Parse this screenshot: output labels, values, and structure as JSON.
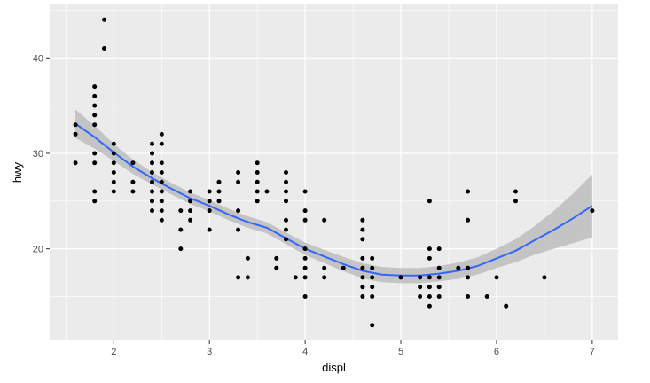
{
  "chart_data": {
    "type": "scatter",
    "title": "",
    "xlabel": "displ",
    "ylabel": "hwy",
    "xlim": [
      1.33,
      7.27
    ],
    "ylim": [
      10.4,
      45.6
    ],
    "x_ticks": [
      2,
      3,
      4,
      5,
      6,
      7
    ],
    "y_ticks": [
      20,
      30,
      40
    ],
    "grid": true,
    "legend": "none",
    "colors": {
      "panel": "#ebebeb",
      "grid": "#ffffff",
      "point": "#000000",
      "smooth_line": "#3366ff",
      "ribbon": "#bdbdbd",
      "axis_text": "#4d4d4d",
      "axis_title": "#000000"
    },
    "points": [
      [
        1.6,
        33
      ],
      [
        1.6,
        32
      ],
      [
        1.6,
        29
      ],
      [
        1.8,
        37
      ],
      [
        1.8,
        36
      ],
      [
        1.8,
        35
      ],
      [
        1.8,
        34
      ],
      [
        1.8,
        33
      ],
      [
        1.8,
        30
      ],
      [
        1.8,
        29
      ],
      [
        1.8,
        26
      ],
      [
        1.8,
        25
      ],
      [
        1.9,
        44
      ],
      [
        1.9,
        41
      ],
      [
        2.0,
        31
      ],
      [
        2.0,
        30
      ],
      [
        2.0,
        29
      ],
      [
        2.0,
        28
      ],
      [
        2.0,
        27
      ],
      [
        2.0,
        26
      ],
      [
        2.2,
        29
      ],
      [
        2.2,
        27
      ],
      [
        2.2,
        26
      ],
      [
        2.4,
        31
      ],
      [
        2.4,
        30
      ],
      [
        2.4,
        29
      ],
      [
        2.4,
        28
      ],
      [
        2.4,
        27
      ],
      [
        2.4,
        26
      ],
      [
        2.4,
        25
      ],
      [
        2.4,
        24
      ],
      [
        2.5,
        32
      ],
      [
        2.5,
        31
      ],
      [
        2.5,
        29
      ],
      [
        2.5,
        28
      ],
      [
        2.5,
        27
      ],
      [
        2.5,
        26
      ],
      [
        2.5,
        25
      ],
      [
        2.5,
        24
      ],
      [
        2.5,
        23
      ],
      [
        2.7,
        24
      ],
      [
        2.7,
        22
      ],
      [
        2.7,
        20
      ],
      [
        2.8,
        26
      ],
      [
        2.8,
        25
      ],
      [
        2.8,
        24
      ],
      [
        2.8,
        23
      ],
      [
        3.0,
        26
      ],
      [
        3.0,
        25
      ],
      [
        3.0,
        24
      ],
      [
        3.0,
        22
      ],
      [
        3.1,
        27
      ],
      [
        3.1,
        26
      ],
      [
        3.1,
        25
      ],
      [
        3.3,
        28
      ],
      [
        3.3,
        27
      ],
      [
        3.3,
        24
      ],
      [
        3.3,
        22
      ],
      [
        3.3,
        17
      ],
      [
        3.4,
        19
      ],
      [
        3.4,
        17
      ],
      [
        3.5,
        29
      ],
      [
        3.5,
        28
      ],
      [
        3.5,
        27
      ],
      [
        3.5,
        26
      ],
      [
        3.5,
        25
      ],
      [
        3.6,
        26
      ],
      [
        3.7,
        19
      ],
      [
        3.7,
        18
      ],
      [
        3.8,
        28
      ],
      [
        3.8,
        27
      ],
      [
        3.8,
        26
      ],
      [
        3.8,
        25
      ],
      [
        3.8,
        23
      ],
      [
        3.8,
        22
      ],
      [
        3.8,
        21
      ],
      [
        3.9,
        17
      ],
      [
        4.0,
        26
      ],
      [
        4.0,
        24
      ],
      [
        4.0,
        23
      ],
      [
        4.0,
        20
      ],
      [
        4.0,
        19
      ],
      [
        4.0,
        18
      ],
      [
        4.0,
        17
      ],
      [
        4.0,
        15
      ],
      [
        4.2,
        23
      ],
      [
        4.2,
        18
      ],
      [
        4.2,
        17
      ],
      [
        4.4,
        18
      ],
      [
        4.6,
        23
      ],
      [
        4.6,
        22
      ],
      [
        4.6,
        21
      ],
      [
        4.6,
        19
      ],
      [
        4.6,
        18
      ],
      [
        4.6,
        17
      ],
      [
        4.6,
        16
      ],
      [
        4.6,
        15
      ],
      [
        4.7,
        19
      ],
      [
        4.7,
        18
      ],
      [
        4.7,
        17
      ],
      [
        4.7,
        16
      ],
      [
        4.7,
        15
      ],
      [
        4.7,
        12
      ],
      [
        5.0,
        17
      ],
      [
        5.2,
        17
      ],
      [
        5.2,
        16
      ],
      [
        5.2,
        15
      ],
      [
        5.3,
        25
      ],
      [
        5.3,
        20
      ],
      [
        5.3,
        19
      ],
      [
        5.3,
        17
      ],
      [
        5.3,
        16
      ],
      [
        5.3,
        15
      ],
      [
        5.3,
        14
      ],
      [
        5.4,
        20
      ],
      [
        5.4,
        18
      ],
      [
        5.4,
        17
      ],
      [
        5.4,
        16
      ],
      [
        5.4,
        15
      ],
      [
        5.6,
        18
      ],
      [
        5.7,
        26
      ],
      [
        5.7,
        23
      ],
      [
        5.7,
        18
      ],
      [
        5.7,
        17
      ],
      [
        5.7,
        15
      ],
      [
        5.9,
        15
      ],
      [
        6.0,
        17
      ],
      [
        6.1,
        14
      ],
      [
        6.2,
        26
      ],
      [
        6.2,
        25
      ],
      [
        6.5,
        17
      ],
      [
        7.0,
        24
      ]
    ],
    "smooth": [
      [
        1.6,
        33.1
      ],
      [
        1.8,
        31.7
      ],
      [
        2.0,
        30.1
      ],
      [
        2.2,
        28.6
      ],
      [
        2.4,
        27.4
      ],
      [
        2.6,
        26.3
      ],
      [
        2.8,
        25.3
      ],
      [
        3.0,
        24.5
      ],
      [
        3.2,
        23.6
      ],
      [
        3.4,
        22.8
      ],
      [
        3.6,
        22.2
      ],
      [
        3.8,
        21.1
      ],
      [
        4.0,
        20.0
      ],
      [
        4.2,
        19.2
      ],
      [
        4.4,
        18.4
      ],
      [
        4.6,
        17.7
      ],
      [
        4.8,
        17.3
      ],
      [
        5.0,
        17.2
      ],
      [
        5.2,
        17.2
      ],
      [
        5.4,
        17.4
      ],
      [
        5.6,
        17.7
      ],
      [
        5.8,
        18.2
      ],
      [
        6.0,
        19.0
      ],
      [
        6.2,
        19.8
      ],
      [
        6.4,
        20.9
      ],
      [
        6.6,
        22.0
      ],
      [
        6.8,
        23.2
      ],
      [
        7.0,
        24.5
      ]
    ],
    "ribbon_halfwidth": [
      1.5,
      1.2,
      0.9,
      0.75,
      0.65,
      0.6,
      0.6,
      0.6,
      0.6,
      0.6,
      0.6,
      0.6,
      0.65,
      0.7,
      0.75,
      0.8,
      0.8,
      0.8,
      0.8,
      0.8,
      0.85,
      0.9,
      1.0,
      1.2,
      1.5,
      2.0,
      2.6,
      3.3
    ]
  }
}
